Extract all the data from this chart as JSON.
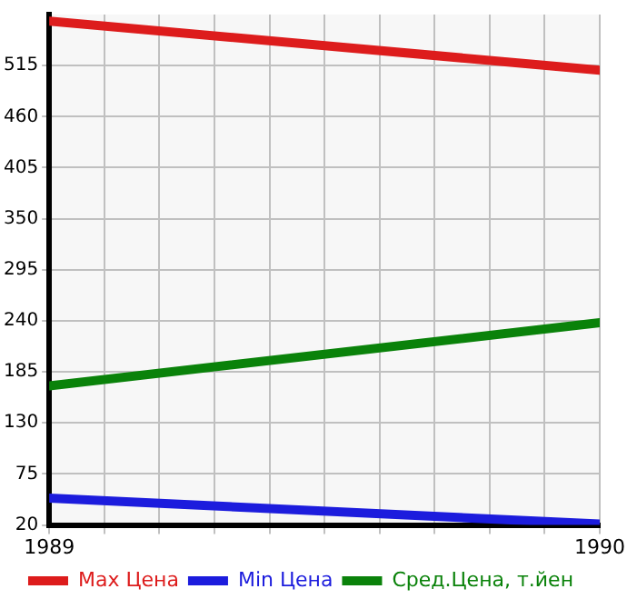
{
  "chart_data": {
    "type": "line",
    "x": [
      1989,
      1990
    ],
    "series": [
      {
        "name": "Max Цена",
        "color": "#dd1c1c",
        "values": [
          563,
          510
        ]
      },
      {
        "name": "Min Цена",
        "color": "#1c1cdd",
        "values": [
          49,
          21
        ]
      },
      {
        "name": "Сред.Цена, т.йен",
        "color": "#0a820a",
        "values": [
          170,
          238
        ]
      }
    ],
    "xlim": [
      1989,
      1990
    ],
    "xticks": [
      1989,
      {
        "value": 1989.1,
        "label": null
      },
      {
        "value": 1989.2,
        "label": null
      },
      {
        "value": 1989.3,
        "label": null
      },
      {
        "value": 1989.4,
        "label": null
      },
      {
        "value": 1989.5,
        "label": null
      },
      {
        "value": 1989.6,
        "label": null
      },
      {
        "value": 1989.7,
        "label": null
      },
      {
        "value": 1989.8,
        "label": null
      },
      {
        "value": 1989.9,
        "label": null
      },
      1990
    ],
    "ylim": [
      20,
      570
    ],
    "yticks": [
      20,
      75,
      130,
      185,
      240,
      295,
      350,
      405,
      460,
      515
    ],
    "grid": true,
    "legend": "bottom",
    "marker": "none",
    "line_style": "solid"
  }
}
